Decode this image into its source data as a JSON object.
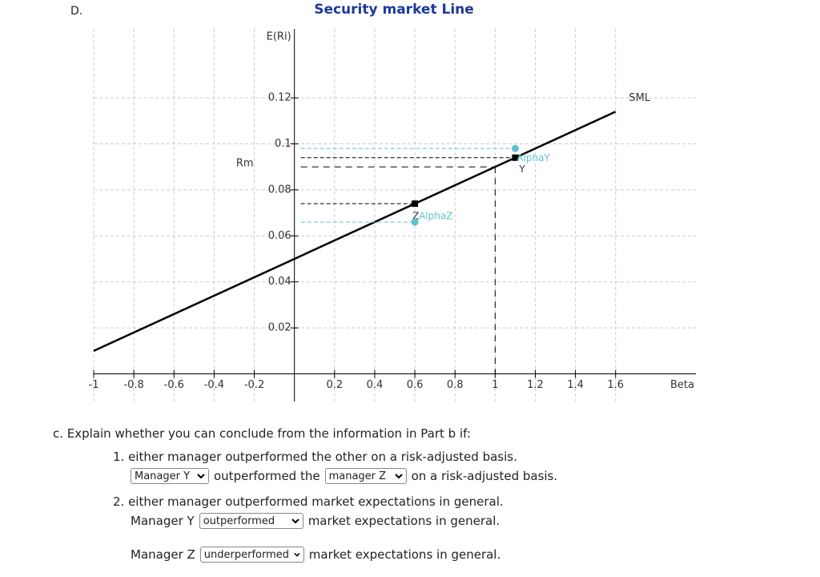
{
  "part_label": "D.",
  "chart_data": {
    "type": "line",
    "title": "Security market Line",
    "x_label": "Beta",
    "y_label": "E(Ri)",
    "xlim": [
      -1,
      2
    ],
    "ylim": [
      -0.012,
      0.15
    ],
    "xticks": [
      -1,
      -0.8,
      -0.6,
      -0.4,
      -0.2,
      0.2,
      0.4,
      0.6,
      0.8,
      1,
      1.2,
      1.4,
      1.6
    ],
    "yticks": [
      0.02,
      0.04,
      0.06,
      0.08,
      0.1,
      0.12
    ],
    "grid": true,
    "series": [
      {
        "name": "SML",
        "color": "#000000",
        "x": [
          -1,
          1.6
        ],
        "values": [
          0.01,
          0.114
        ]
      }
    ],
    "points": [
      {
        "label": "Z",
        "x": 0.6,
        "y": 0.074,
        "color": "#000000"
      },
      {
        "label": "AlphaZ",
        "x": 0.6,
        "y": 0.066,
        "color": "#5ec4cc"
      },
      {
        "label": "Y",
        "x": 1.1,
        "y": 0.094,
        "color": "#000000"
      },
      {
        "label": "AlphaY",
        "x": 1.1,
        "y": 0.098,
        "color": "#5ec4cc"
      }
    ],
    "market": {
      "label": "Rm",
      "x": 1,
      "y": 0.09
    }
  },
  "question": {
    "intro": "c. Explain whether you can conclude from the information in Part b if:",
    "items": [
      {
        "text": "1. either manager outperformed the other on a risk-adjusted basis.",
        "answer": {
          "select1": "Manager Y",
          "middle": "outperformed the",
          "select2": "manager Z",
          "end": "on a risk-adjusted basis."
        }
      },
      {
        "text": "2. either manager outperformed market expectations in general.",
        "answers": [
          {
            "subject": "Manager Y",
            "selection": "outperformed",
            "end": "market expectations in general."
          },
          {
            "subject": "Manager Z",
            "selection": "underperformed",
            "end": "market expectations in general."
          }
        ]
      }
    ]
  }
}
